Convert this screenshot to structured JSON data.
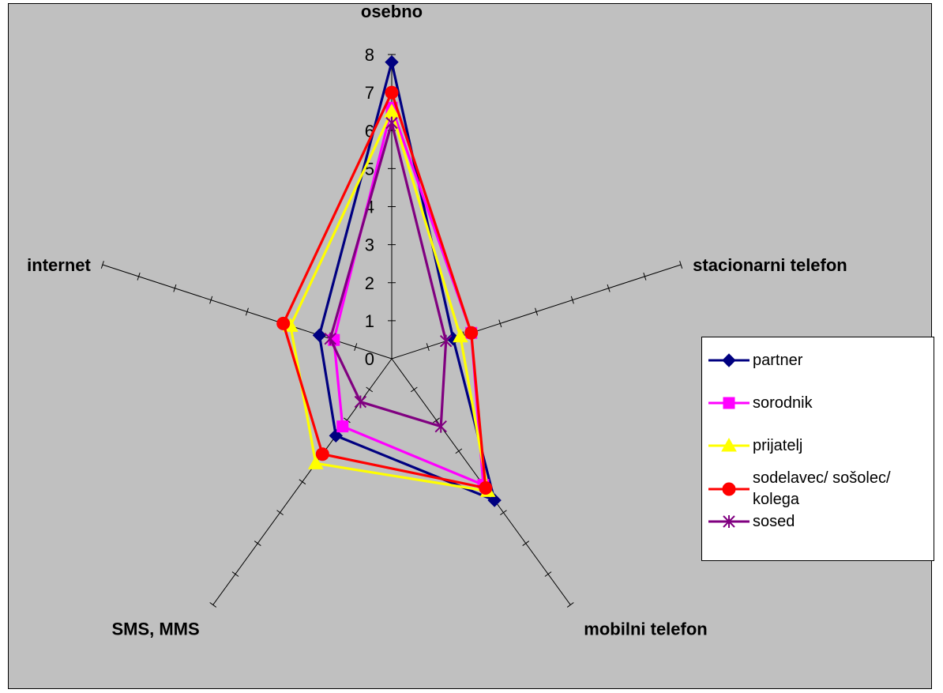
{
  "chart_data": {
    "type": "radar",
    "axes": [
      "osebno",
      "stacionarni telefon",
      "mobilni telefon",
      "SMS, MMS",
      "internet"
    ],
    "rmax": 8,
    "ticks": [
      "0",
      "1",
      "2",
      "3",
      "4",
      "5",
      "6",
      "7",
      "8"
    ],
    "series": [
      {
        "name": "partner",
        "values": [
          7.8,
          1.7,
          4.6,
          2.5,
          2.0
        ],
        "color": "#000080",
        "marker": "diamond"
      },
      {
        "name": "sorodnik",
        "values": [
          6.6,
          2.2,
          4.1,
          2.2,
          1.6
        ],
        "color": "#ff00ff",
        "marker": "square"
      },
      {
        "name": "prijatelj",
        "values": [
          6.5,
          1.9,
          4.3,
          3.4,
          2.8
        ],
        "color": "#ffff00",
        "marker": "triangle"
      },
      {
        "name": "sodelavec/ sošolec/ kolega",
        "values": [
          7.0,
          2.2,
          4.2,
          3.1,
          3.0
        ],
        "color": "#ff0000",
        "marker": "circle"
      },
      {
        "name": "sosed",
        "values": [
          6.2,
          1.5,
          2.2,
          1.4,
          1.7
        ],
        "color": "#800080",
        "marker": "star"
      }
    ]
  }
}
